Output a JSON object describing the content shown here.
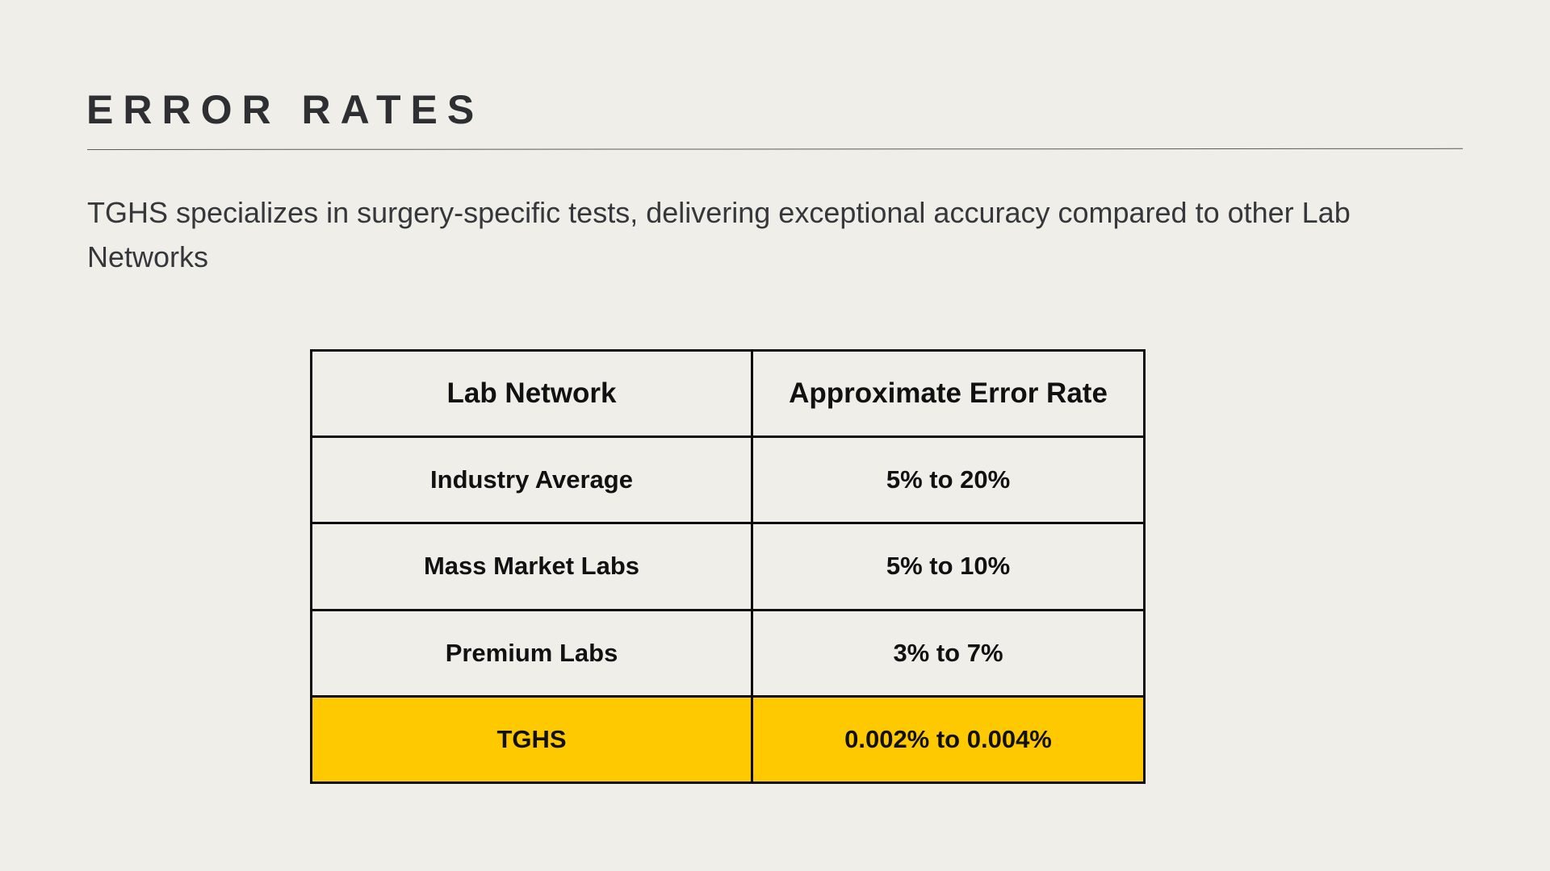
{
  "slide": {
    "title": "ERROR RATES",
    "subtitle": "TGHS specializes in surgery-specific tests, delivering exceptional accuracy compared to other Lab Networks"
  },
  "table": {
    "headers": [
      "Lab Network",
      "Approximate Error Rate"
    ],
    "rows": [
      {
        "network": "Industry Average",
        "rate": "5% to 20%"
      },
      {
        "network": "Mass Market Labs",
        "rate": "5% to 10%"
      },
      {
        "network": "Premium Labs",
        "rate": "3% to 7%"
      },
      {
        "network": "TGHS",
        "rate": "0.002% to 0.004%"
      }
    ],
    "highlight_color": "#ffc900"
  },
  "colors": {
    "background": "#efeee8",
    "text": "#2d2f33",
    "border": "#0d0d0d"
  }
}
